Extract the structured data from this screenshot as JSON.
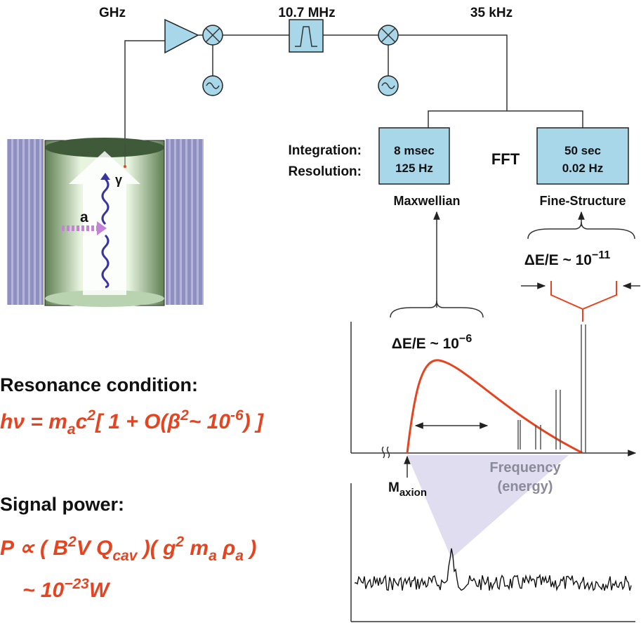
{
  "chain": {
    "input_freq": "GHz",
    "if_freq": "10.7 MHz",
    "output_freq": "35 kHz"
  },
  "fft": {
    "label": "FFT",
    "row_labels": [
      "Integration:",
      "Resolution:"
    ],
    "channels": [
      {
        "integration": "8 msec",
        "resolution": "125 Hz",
        "name": "Maxwellian"
      },
      {
        "integration": "50 sec",
        "resolution": "0.02 Hz",
        "name": "Fine-Structure"
      }
    ]
  },
  "fine_resolution": [
    "ΔE/E ~ 10",
    "−11"
  ],
  "maxwellian_width": [
    "ΔE/E ~ 10",
    "−6"
  ],
  "cavity": {
    "axion_label": "a",
    "photon_label": "γ"
  },
  "spectrum": {
    "x_label": [
      "Frequency",
      "(energy)"
    ],
    "axion_mass": [
      "M",
      "axion"
    ]
  },
  "resonance": {
    "heading": "Resonance condition:",
    "formula": [
      "hν = m",
      "a",
      "c",
      "2",
      "[ 1 + O(β",
      "2",
      "~ 10",
      "-6",
      ") ]"
    ]
  },
  "signal": {
    "heading": "Signal power:",
    "formula": [
      "P ∝ ( B",
      "2",
      "V Q",
      "cav",
      " )( g",
      "2",
      " m",
      "a",
      " ρ",
      "a",
      " )"
    ],
    "magnitude": [
      "~ 10",
      "−23",
      "W"
    ]
  }
}
